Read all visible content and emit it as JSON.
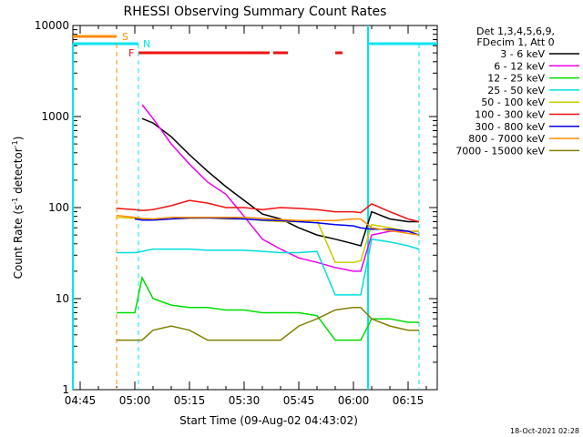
{
  "chart_data": {
    "type": "line",
    "title": "RHESSI Observing Summary Count Rates",
    "xlabel": "Start Time (09-Aug-02 04:43:02)",
    "ylabel_main": "Count Rate (s",
    "ylabel_sup1": "-1",
    "ylabel_mid": " detector",
    "ylabel_sup2": "-1",
    "ylabel_end": ")",
    "yscale": "log",
    "ylim": [
      1,
      10000
    ],
    "xlim": [
      "04:43",
      "06:23"
    ],
    "x_ticks": [
      "04:45",
      "05:00",
      "05:15",
      "05:30",
      "05:45",
      "06:00",
      "06:15"
    ],
    "y_ticks": [
      "1",
      "10",
      "100",
      "1000",
      "10000"
    ],
    "legend_header": [
      "Det 1,3,4,5,6,9,",
      "FDecim 1, Att 0"
    ],
    "legend_placement": "right",
    "timestamp": "18-Oct-2021 02:28",
    "flags": [
      {
        "label": "S",
        "color": "#ff8c00"
      },
      {
        "label": "N",
        "color": "#00e5ee"
      },
      {
        "label": "F",
        "color": "#ee1111"
      }
    ],
    "times": [
      "04:55",
      "05:00",
      "05:02",
      "05:05",
      "05:10",
      "05:15",
      "05:20",
      "05:25",
      "05:30",
      "05:35",
      "05:40",
      "05:45",
      "05:50",
      "05:55",
      "06:00",
      "06:02",
      "06:05",
      "06:10",
      "06:15",
      "06:18"
    ],
    "series": [
      {
        "name": "3 - 6 keV",
        "color": "#000000",
        "values": [
          null,
          null,
          950,
          850,
          600,
          380,
          250,
          170,
          120,
          85,
          75,
          60,
          50,
          45,
          40,
          38,
          90,
          75,
          70,
          70
        ]
      },
      {
        "name": "6 - 12 keV",
        "color": "#ee00ee",
        "values": [
          null,
          null,
          1350,
          950,
          500,
          300,
          190,
          140,
          80,
          45,
          35,
          28,
          25,
          22,
          20,
          20,
          50,
          55,
          55,
          55
        ]
      },
      {
        "name": "12 - 25 keV",
        "color": "#00dd00",
        "values": [
          7,
          7,
          17,
          10,
          8.5,
          8,
          8,
          7.5,
          7.5,
          7,
          7,
          7,
          6.5,
          3.5,
          3.5,
          3.5,
          6,
          6,
          5.5,
          5.5
        ]
      },
      {
        "name": "25 - 50 keV",
        "color": "#00dddd",
        "values": [
          32,
          32,
          33,
          35,
          35,
          35,
          34,
          34,
          34,
          33,
          32,
          32,
          33,
          11,
          11,
          11,
          45,
          42,
          38,
          35
        ]
      },
      {
        "name": "50 - 100 keV",
        "color": "#cccc00",
        "values": [
          78,
          76,
          75,
          73,
          75,
          76,
          77,
          75,
          75,
          72,
          70,
          70,
          72,
          25,
          25,
          26,
          65,
          60,
          55,
          55
        ]
      },
      {
        "name": "100 - 300 keV",
        "color": "#ee1111",
        "values": [
          98,
          95,
          93,
          95,
          105,
          120,
          112,
          100,
          100,
          95,
          100,
          98,
          95,
          90,
          90,
          88,
          110,
          90,
          75,
          70
        ]
      },
      {
        "name": "300 - 800 keV",
        "color": "#0000ee",
        "values": [
          null,
          75,
          73,
          73,
          75,
          77,
          77,
          76,
          75,
          73,
          72,
          70,
          68,
          65,
          63,
          60,
          58,
          58,
          55,
          50
        ]
      },
      {
        "name": "800 - 7000 keV",
        "color": "#ff8c00",
        "values": [
          82,
          78,
          76,
          75,
          78,
          78,
          78,
          78,
          78,
          76,
          74,
          72,
          72,
          72,
          75,
          75,
          60,
          56,
          52,
          50
        ]
      },
      {
        "name": "7000 - 15000 keV",
        "color": "#808000",
        "values": [
          3.5,
          3.5,
          3.5,
          4.5,
          5,
          4.5,
          3.5,
          3.5,
          3.5,
          3.5,
          3.5,
          5,
          6,
          7.5,
          8,
          8,
          6,
          5,
          4.5,
          4.5
        ]
      }
    ]
  }
}
